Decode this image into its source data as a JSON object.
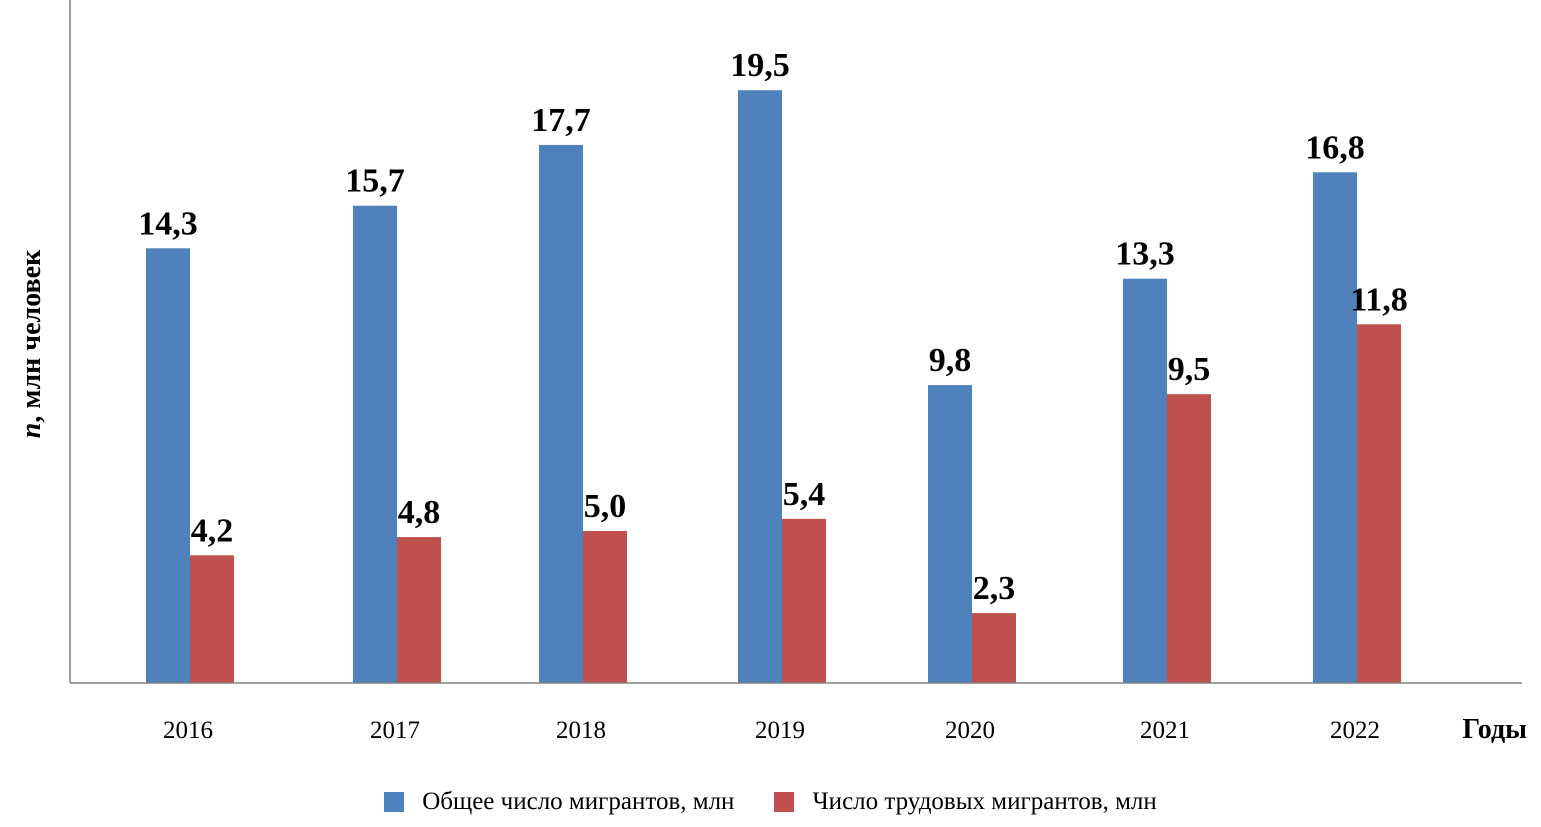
{
  "chart_data": {
    "type": "bar",
    "categories": [
      "2016",
      "2017",
      "2018",
      "2019",
      "2020",
      "2021",
      "2022"
    ],
    "series": [
      {
        "name": "Общее число мигрантов, млн",
        "values": [
          14.3,
          15.7,
          17.7,
          19.5,
          9.8,
          13.3,
          16.8
        ],
        "labels": [
          "14,3",
          "15,7",
          "17,7",
          "19,5",
          "9,8",
          "13,3",
          "16,8"
        ],
        "color": "#4F81BD"
      },
      {
        "name": "Число трудовых мигрантов, млн",
        "values": [
          4.2,
          4.8,
          5.0,
          5.4,
          2.3,
          9.5,
          11.8
        ],
        "labels": [
          "4,2",
          "4,8",
          "5,0",
          "5,4",
          "2,3",
          "9,5",
          "11,8"
        ],
        "color": "#C0504D"
      }
    ],
    "xlabel": "Годы",
    "ylabel_italic": "n",
    "ylabel_rest": ", млн человек",
    "ylim": [
      0,
      22
    ],
    "grid": false,
    "legend_position": "bottom"
  }
}
